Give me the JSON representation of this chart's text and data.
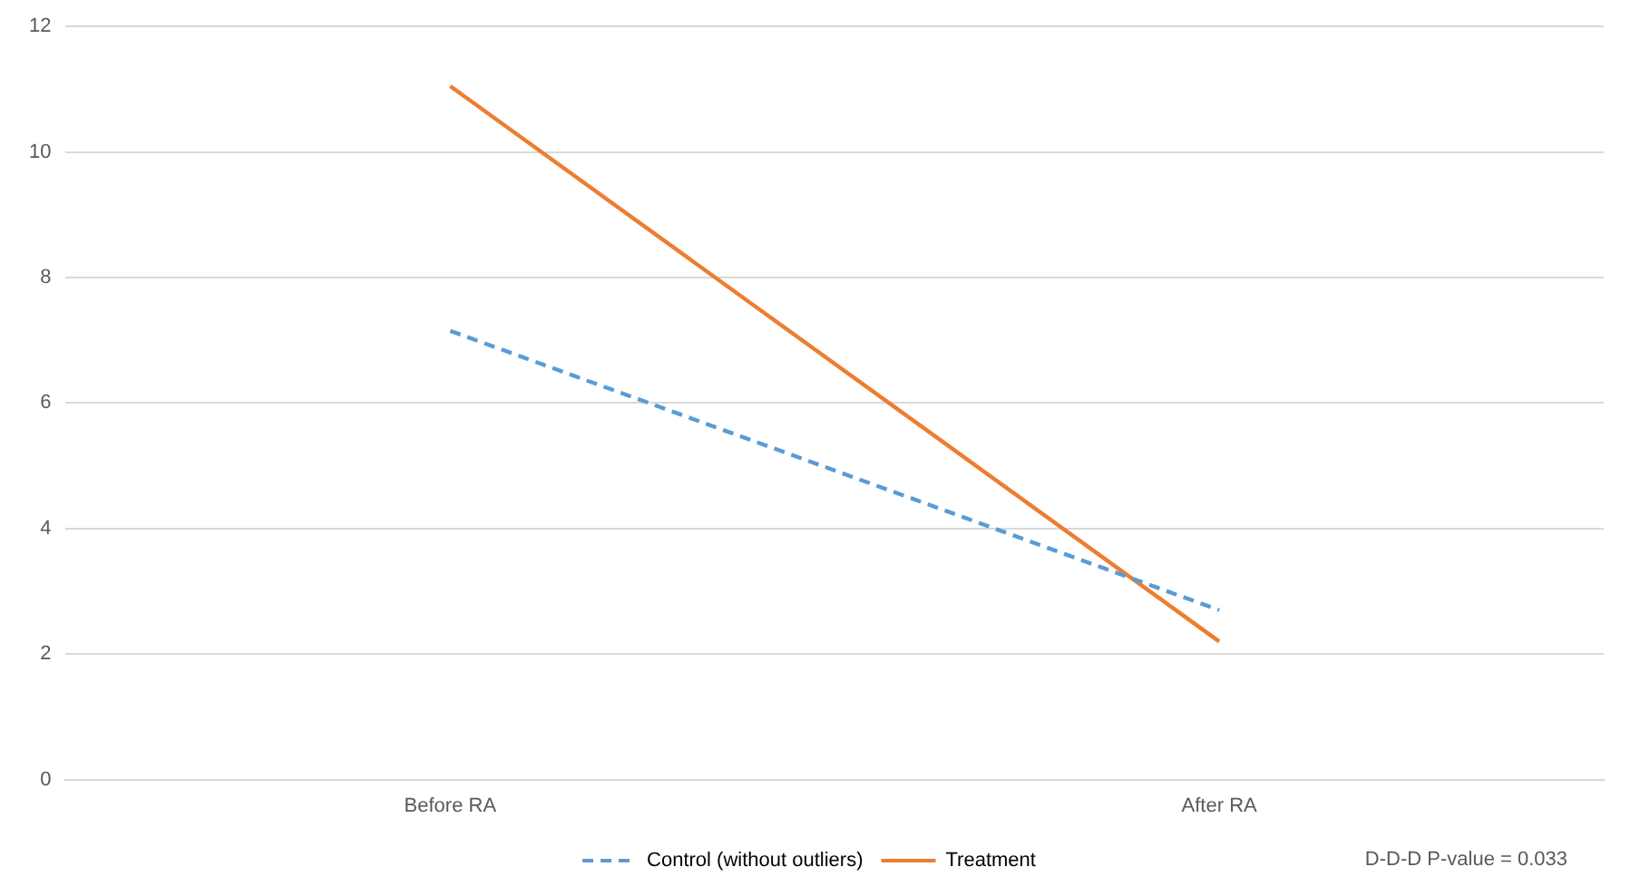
{
  "chart_data": {
    "type": "line",
    "categories": [
      "Before RA",
      "After RA"
    ],
    "series": [
      {
        "name": "Control (without outliers)",
        "color": "#5b9bd5",
        "values": [
          7.15,
          2.7
        ],
        "line_style": "dashed"
      },
      {
        "name": "Treatment",
        "color": "#ed7d31",
        "values": [
          11.05,
          2.2
        ],
        "line_style": "solid"
      }
    ],
    "ylim": [
      0,
      12
    ],
    "yticks": [
      0,
      2,
      4,
      6,
      8,
      10,
      12
    ],
    "grid": "y",
    "legend": "bottom",
    "marker": "none",
    "annotations": [
      "D-D-D P-value = 0.033"
    ]
  }
}
